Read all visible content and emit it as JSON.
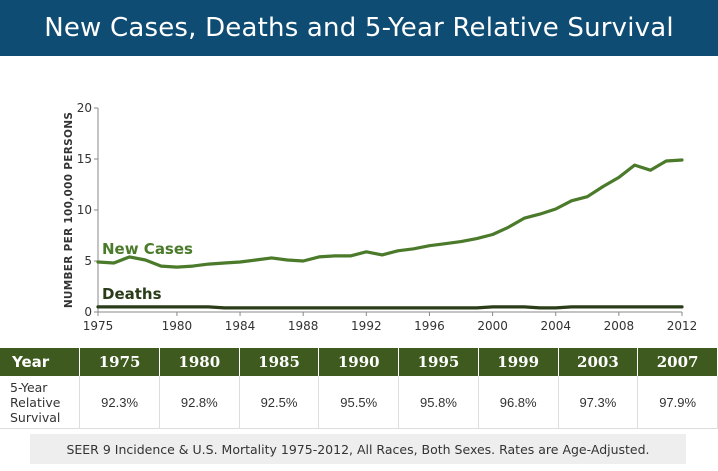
{
  "header": {
    "title": "New Cases, Deaths and 5-Year Relative Survival"
  },
  "chart_data": {
    "type": "line",
    "ylabel": "NUMBER PER 100,000 PERSONS",
    "xlim": [
      1975,
      2012
    ],
    "ylim": [
      0,
      20
    ],
    "x_ticks": [
      "1975",
      "1980",
      "1984",
      "1988",
      "1992",
      "1996",
      "2000",
      "2004",
      "2008",
      "2012"
    ],
    "y_ticks": [
      "0",
      "5",
      "10",
      "15",
      "20"
    ],
    "grid": false,
    "series": [
      {
        "name": "New Cases",
        "color": "#4a7a2a",
        "x": [
          1975,
          1976,
          1977,
          1978,
          1979,
          1980,
          1981,
          1982,
          1983,
          1984,
          1985,
          1986,
          1987,
          1988,
          1989,
          1990,
          1991,
          1992,
          1993,
          1994,
          1995,
          1996,
          1997,
          1998,
          1999,
          2000,
          2001,
          2002,
          2003,
          2004,
          2005,
          2006,
          2007,
          2008,
          2009,
          2010,
          2011,
          2012
        ],
        "values": [
          4.9,
          4.8,
          5.4,
          5.1,
          4.5,
          4.4,
          4.5,
          4.7,
          4.8,
          4.9,
          5.1,
          5.3,
          5.1,
          5.0,
          5.4,
          5.5,
          5.5,
          5.9,
          5.6,
          6.0,
          6.2,
          6.5,
          6.7,
          6.9,
          7.2,
          7.6,
          8.3,
          9.2,
          9.6,
          10.1,
          10.9,
          11.3,
          12.3,
          13.2,
          14.4,
          13.9,
          14.8,
          14.9
        ]
      },
      {
        "name": "Deaths",
        "color": "#2a3d18",
        "x": [
          1975,
          1976,
          1977,
          1978,
          1979,
          1980,
          1981,
          1982,
          1983,
          1984,
          1985,
          1986,
          1987,
          1988,
          1989,
          1990,
          1991,
          1992,
          1993,
          1994,
          1995,
          1996,
          1997,
          1998,
          1999,
          2000,
          2001,
          2002,
          2003,
          2004,
          2005,
          2006,
          2007,
          2008,
          2009,
          2010,
          2011,
          2012
        ],
        "values": [
          0.5,
          0.5,
          0.5,
          0.5,
          0.5,
          0.5,
          0.5,
          0.5,
          0.4,
          0.4,
          0.4,
          0.4,
          0.4,
          0.4,
          0.4,
          0.4,
          0.4,
          0.4,
          0.4,
          0.4,
          0.4,
          0.4,
          0.4,
          0.4,
          0.4,
          0.5,
          0.5,
          0.5,
          0.4,
          0.4,
          0.5,
          0.5,
          0.5,
          0.5,
          0.5,
          0.5,
          0.5,
          0.5
        ]
      }
    ]
  },
  "survival_table": {
    "header_label": "Year",
    "row_label": "5-Year Relative Survival",
    "row_label_lines": [
      "5-Year",
      "Relative",
      "Survival"
    ],
    "years": [
      "1975",
      "1980",
      "1985",
      "1990",
      "1995",
      "1999",
      "2003",
      "2007"
    ],
    "values": [
      "92.3%",
      "92.8%",
      "92.5%",
      "95.5%",
      "95.8%",
      "96.8%",
      "97.3%",
      "97.9%"
    ]
  },
  "footer": {
    "note": "SEER 9 Incidence & U.S. Mortality 1975-2012, All Races, Both Sexes. Rates are Age-Adjusted."
  }
}
